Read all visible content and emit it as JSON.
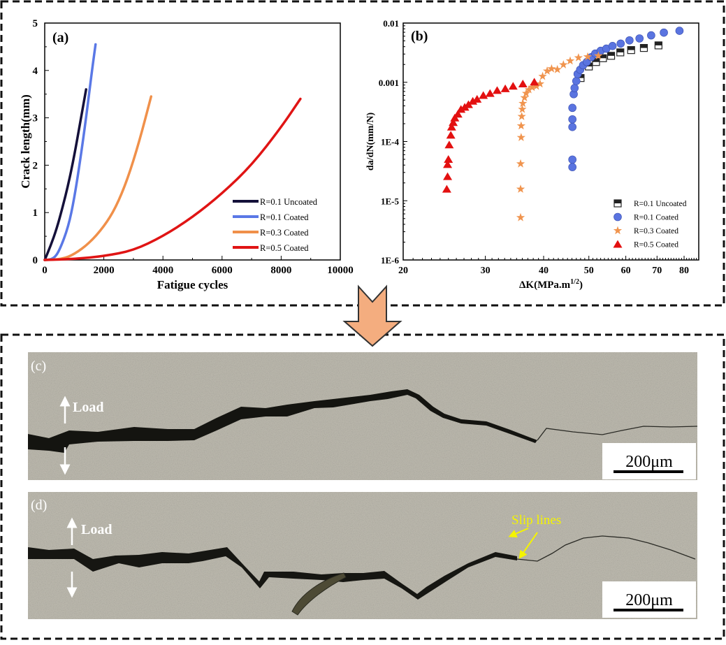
{
  "chart_data": [
    {
      "type": "line",
      "panel_label": "(a)",
      "xlabel": "Fatigue cycles",
      "ylabel": "Crack length(mm)",
      "xlim": [
        0,
        10000
      ],
      "ylim": [
        0,
        5
      ],
      "xticks": [
        0,
        2000,
        4000,
        6000,
        8000,
        10000
      ],
      "yticks": [
        0,
        1,
        2,
        3,
        4,
        5
      ],
      "legend_position": "bottom-right",
      "grid": false,
      "series": [
        {
          "name": "R=0.1 Uncoated",
          "color": "#14103a",
          "x": [
            0,
            200,
            400,
            600,
            800,
            1000,
            1200,
            1400
          ],
          "y": [
            0,
            0.3,
            0.65,
            1.1,
            1.6,
            2.2,
            2.9,
            3.6
          ]
        },
        {
          "name": "R=0.1 Coated",
          "color": "#5a78e6",
          "x": [
            0,
            300,
            500,
            800,
            1000,
            1200,
            1400,
            1600,
            1720
          ],
          "y": [
            0,
            0.02,
            0.2,
            0.7,
            1.3,
            2.1,
            3.0,
            4.0,
            4.55
          ]
        },
        {
          "name": "R=0.3 Coated",
          "color": "#f0904a",
          "x": [
            0,
            600,
            1000,
            1500,
            2000,
            2400,
            2800,
            3200,
            3600
          ],
          "y": [
            0,
            0.02,
            0.12,
            0.35,
            0.7,
            1.1,
            1.7,
            2.5,
            3.45
          ]
        },
        {
          "name": "R=0.5 Coated",
          "color": "#e01414",
          "x": [
            0,
            1000,
            2000,
            3000,
            4000,
            5000,
            6000,
            7000,
            8000,
            8650
          ],
          "y": [
            0,
            0.02,
            0.08,
            0.2,
            0.5,
            0.9,
            1.4,
            2.0,
            2.8,
            3.4
          ]
        }
      ]
    },
    {
      "type": "scatter",
      "panel_label": "(b)",
      "xlabel": "ΔK(MPa.m",
      "xlabel_sup": "1/2",
      "xlabel_end": ")",
      "ylabel": "da/dN(mm/N)",
      "xscale": "log",
      "yscale": "log",
      "xlim": [
        20,
        86
      ],
      "ylim": [
        1e-06,
        0.01
      ],
      "xticks": [
        20,
        30,
        40,
        50,
        60,
        70,
        80
      ],
      "yticks": [
        1e-06,
        1e-05,
        0.0001,
        0.001,
        0.01
      ],
      "ytick_labels": [
        "1E-6",
        "1E-5",
        "1E-4",
        "0.001",
        "0.01"
      ],
      "legend_position": "bottom-right",
      "series": [
        {
          "name": "R=0.1 Uncoated",
          "marker": "half-filled-square",
          "color": "#222222",
          "x": [
            48.0,
            50.0,
            51.8,
            53.6,
            55.8,
            58.4,
            61.6,
            65.6,
            70.5
          ],
          "y": [
            0.00118,
            0.00185,
            0.0022,
            0.00255,
            0.0028,
            0.0032,
            0.0035,
            0.0038,
            0.0042
          ]
        },
        {
          "name": "R=0.1 Coated",
          "marker": "circle",
          "color": "#5a74e0",
          "x": [
            46.1,
            46.1,
            46.1,
            46.1,
            46.1,
            46.4,
            46.6,
            47.0,
            47.3,
            47.9,
            48.6,
            49.5,
            50.6,
            51.6,
            53.0,
            54.5,
            56.2,
            58.5,
            61.1,
            64.2,
            68.0,
            72.4,
            78.2
          ],
          "y": [
            3.7e-05,
            4.95e-05,
            0.000176,
            0.000237,
            0.00037,
            0.00063,
            0.0008,
            0.00105,
            0.00138,
            0.00163,
            0.00194,
            0.0022,
            0.00266,
            0.00305,
            0.0034,
            0.0037,
            0.0041,
            0.0045,
            0.0051,
            0.0055,
            0.0062,
            0.0069,
            0.0074
          ]
        },
        {
          "name": "R=0.3 Coated",
          "marker": "star",
          "color": "#f0944e",
          "x": [
            35.7,
            35.7,
            35.7,
            35.8,
            35.8,
            35.9,
            36.0,
            36.1,
            36.4,
            36.7,
            37.2,
            37.8,
            38.6,
            39.3,
            39.8,
            40.7,
            41.6,
            42.8,
            44.1,
            45.6,
            47.5,
            49.7,
            52.4
          ],
          "y": [
            5.2e-06,
            1.57e-05,
            4.2e-05,
            0.000117,
            0.000184,
            0.000265,
            0.00035,
            0.00044,
            0.00055,
            0.00065,
            0.00075,
            0.00082,
            0.00086,
            0.00094,
            0.00126,
            0.00155,
            0.00169,
            0.00164,
            0.00198,
            0.0023,
            0.0026,
            0.0027,
            0.0028
          ]
        },
        {
          "name": "R=0.5 Coated",
          "marker": "triangle",
          "color": "#e31010",
          "x": [
            24.8,
            24.9,
            24.9,
            25.0,
            25.1,
            25.3,
            25.4,
            25.6,
            25.8,
            26.2,
            26.6,
            27.1,
            27.6,
            28.2,
            28.8,
            29.7,
            30.7,
            31.8,
            33.1,
            34.4,
            36.1,
            38.2
          ],
          "y": [
            1.57e-05,
            2.56e-05,
            4.1e-05,
            5e-05,
            8.8e-05,
            0.000128,
            0.000176,
            0.00021,
            0.00025,
            0.00029,
            0.00035,
            0.00038,
            0.00042,
            0.00048,
            0.00052,
            0.0006,
            0.00065,
            0.00073,
            0.00078,
            0.00086,
            0.00094,
            0.00101
          ]
        }
      ]
    }
  ],
  "micrographs": [
    {
      "label": "(c)",
      "load_label": "Load",
      "scale_bar": "200μm"
    },
    {
      "label": "(d)",
      "load_label": "Load",
      "scale_bar": "200μm",
      "annotation": "Slip lines"
    }
  ]
}
